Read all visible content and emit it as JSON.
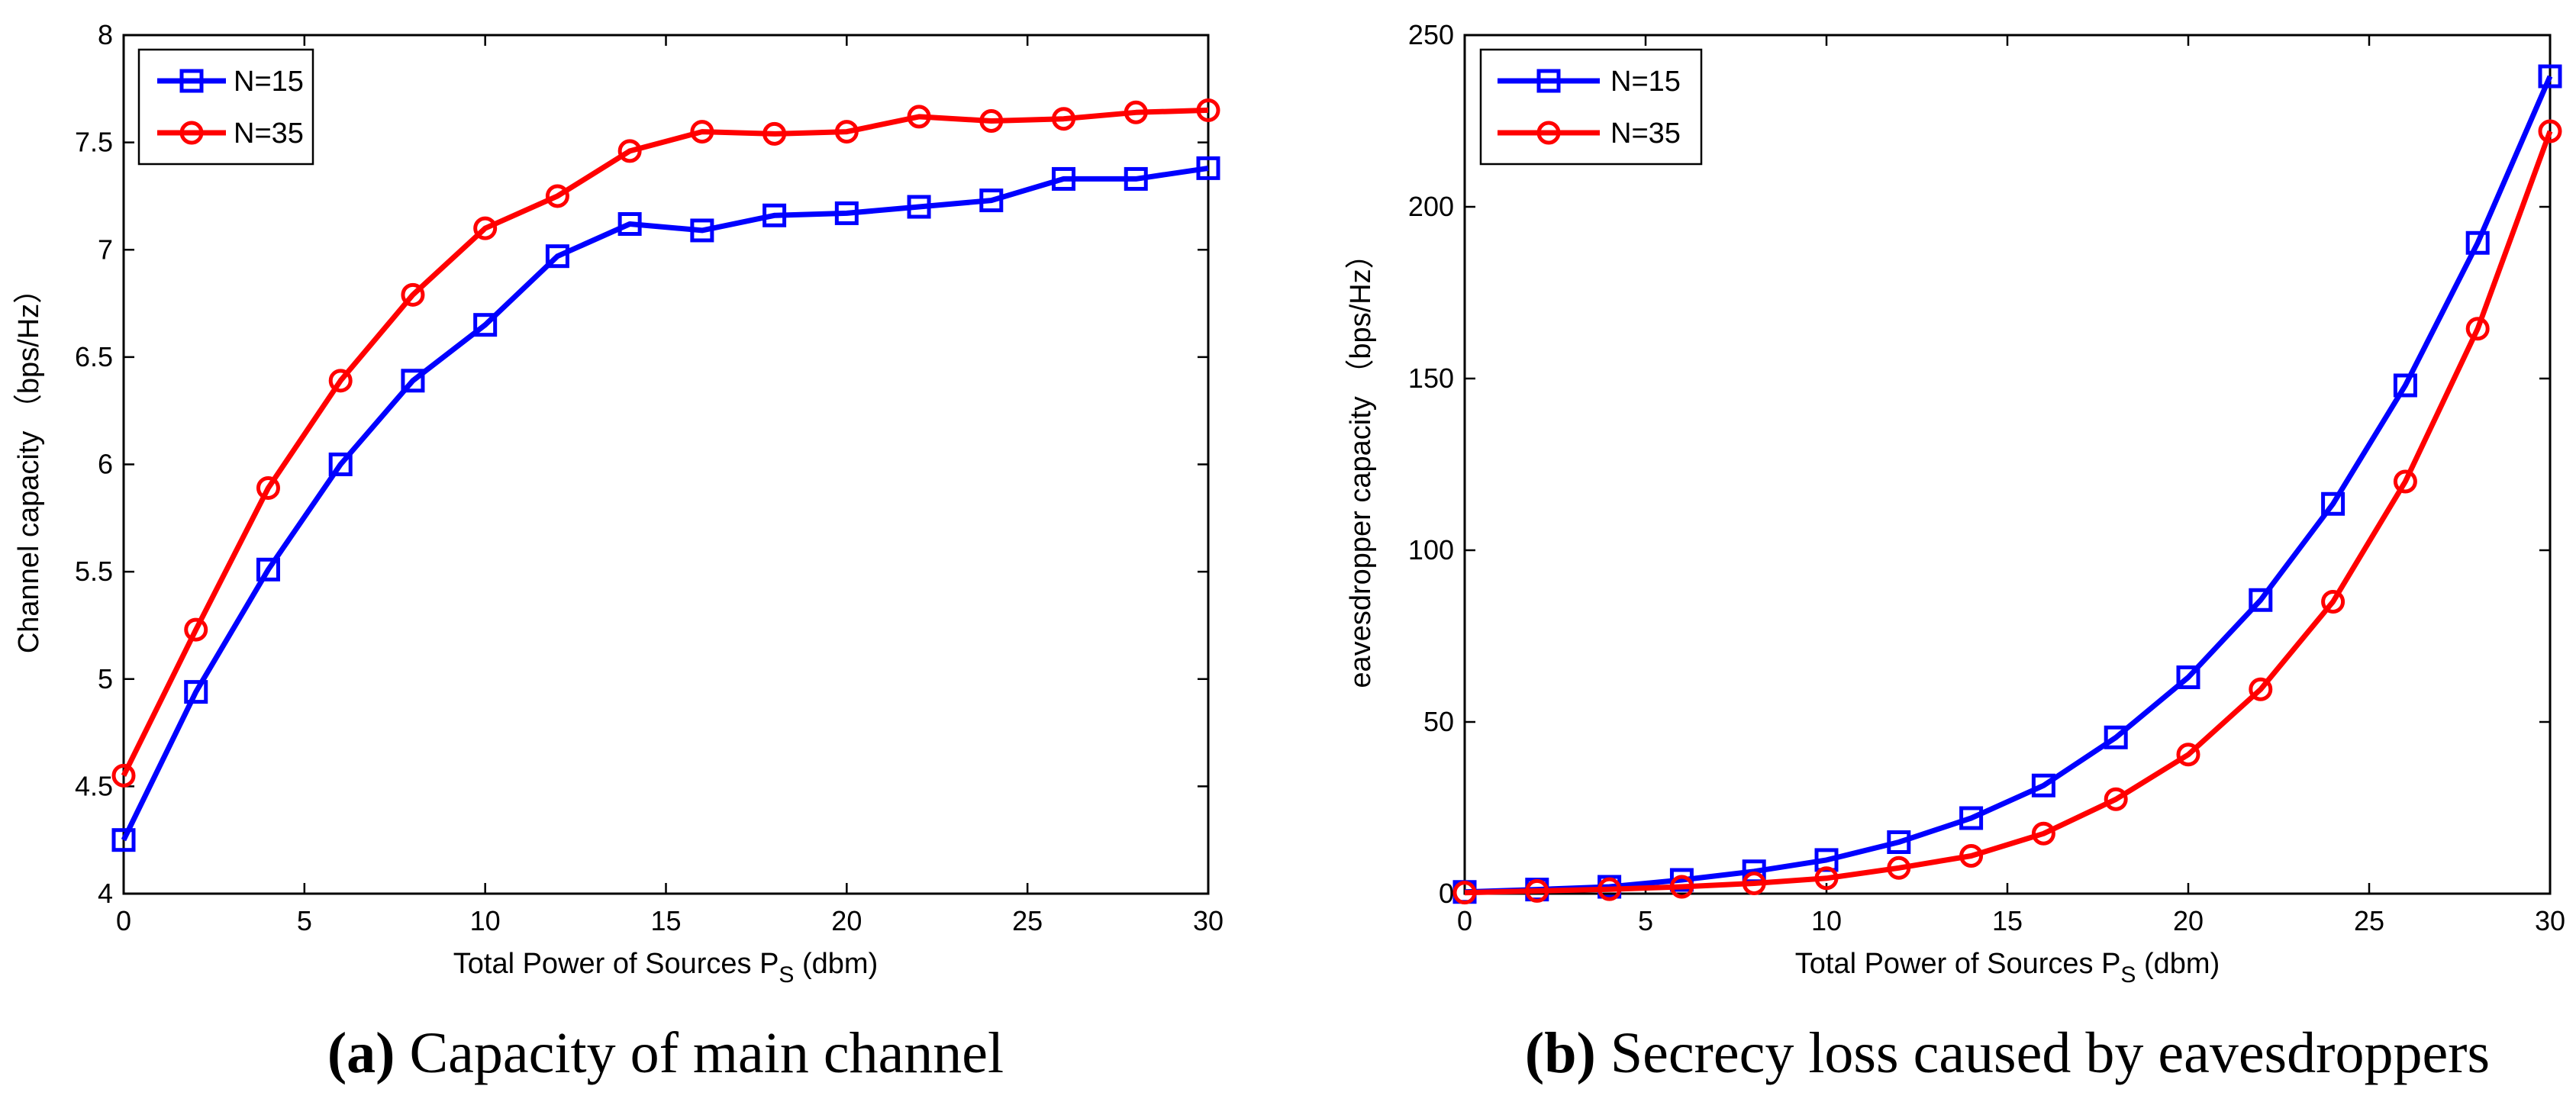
{
  "chart_data": [
    {
      "type": "line",
      "x": [
        0,
        2,
        4,
        6,
        8,
        10,
        12,
        14,
        16,
        18,
        20,
        22,
        24,
        26,
        28,
        30
      ],
      "series": [
        {
          "name": "N=15",
          "color": "#0000ff",
          "marker": "square",
          "values": [
            4.25,
            4.94,
            5.51,
            6.0,
            6.39,
            6.65,
            6.97,
            7.12,
            7.09,
            7.16,
            7.17,
            7.2,
            7.23,
            7.33,
            7.33,
            7.38
          ]
        },
        {
          "name": "N=35",
          "color": "#ff0000",
          "marker": "circle",
          "values": [
            4.55,
            5.23,
            5.89,
            6.39,
            6.79,
            7.1,
            7.25,
            7.46,
            7.55,
            7.54,
            7.55,
            7.62,
            7.6,
            7.61,
            7.64,
            7.65
          ]
        }
      ],
      "xlim": [
        0,
        30
      ],
      "ylim": [
        4,
        8
      ],
      "xticks": [
        "0",
        "5",
        "10",
        "15",
        "20",
        "25",
        "30"
      ],
      "yticks": [
        "4",
        "4.5",
        "5",
        "5.5",
        "6",
        "6.5",
        "7",
        "7.5",
        "8"
      ],
      "xlabel_main": "Total Power of Sources P",
      "xlabel_sub": "S",
      "xlabel_tail": " (dbm)",
      "ylabel": "Channel capacity  （bps/Hz）",
      "legend": "top-left",
      "caption_tag": "(a)",
      "caption_text": " Capacity of main channel"
    },
    {
      "type": "line",
      "x": [
        0,
        2,
        4,
        6,
        8,
        10,
        12,
        14,
        16,
        18,
        20,
        22,
        24,
        26,
        28,
        30
      ],
      "series": [
        {
          "name": "N=15",
          "color": "#0000ff",
          "marker": "square",
          "values": [
            0.5,
            1.2,
            2.0,
            4.0,
            6.5,
            9.8,
            15.0,
            22.0,
            31.5,
            45.5,
            63.0,
            85.5,
            113.5,
            148.0,
            189.5,
            238.0
          ]
        },
        {
          "name": "N=35",
          "color": "#ff0000",
          "marker": "circle",
          "values": [
            0.3,
            0.8,
            1.3,
            2.0,
            3.0,
            4.5,
            7.5,
            11.0,
            17.5,
            27.5,
            40.5,
            59.5,
            85.0,
            120.0,
            164.5,
            222.0
          ]
        }
      ],
      "xlim": [
        0,
        30
      ],
      "ylim": [
        0,
        250
      ],
      "xticks": [
        "0",
        "5",
        "10",
        "15",
        "20",
        "25",
        "30"
      ],
      "yticks": [
        "0",
        "50",
        "100",
        "150",
        "200",
        "250"
      ],
      "xlabel_main": "Total Power of Sources P",
      "xlabel_sub": "S",
      "xlabel_tail": " (dbm)",
      "ylabel": "eavesdropper capacity （bps/Hz）",
      "legend": "top-left",
      "caption_tag": "(b)",
      "caption_text": " Secrecy loss caused by eavesdroppers"
    }
  ]
}
